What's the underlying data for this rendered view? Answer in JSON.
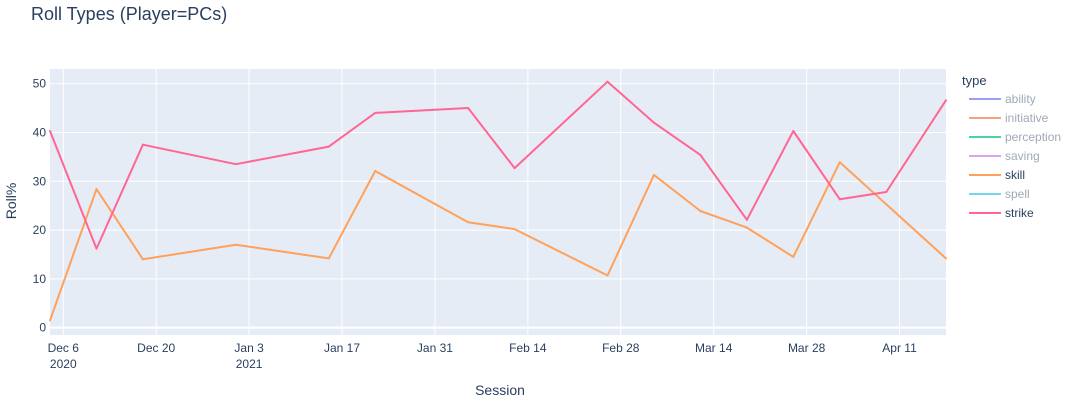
{
  "chart_data": {
    "type": "line",
    "title": "Roll Types (Player=PCs)",
    "xlabel": "Session",
    "ylabel": "Roll%",
    "x_type": "date",
    "xlim": [
      "2020-12-04",
      "2021-04-18"
    ],
    "ylim": [
      -1.5,
      53
    ],
    "grid": true,
    "legend_title": "type",
    "legend_placement": "right",
    "x_ticks": [
      {
        "date": "2020-12-06",
        "label": "Dec 6",
        "sublabel": "2020"
      },
      {
        "date": "2020-12-20",
        "label": "Dec 20",
        "sublabel": ""
      },
      {
        "date": "2021-01-03",
        "label": "Jan 3",
        "sublabel": "2021"
      },
      {
        "date": "2021-01-17",
        "label": "Jan 17",
        "sublabel": ""
      },
      {
        "date": "2021-01-31",
        "label": "Jan 31",
        "sublabel": ""
      },
      {
        "date": "2021-02-14",
        "label": "Feb 14",
        "sublabel": ""
      },
      {
        "date": "2021-02-28",
        "label": "Feb 28",
        "sublabel": ""
      },
      {
        "date": "2021-03-14",
        "label": "Mar 14",
        "sublabel": ""
      },
      {
        "date": "2021-03-28",
        "label": "Mar 28",
        "sublabel": ""
      },
      {
        "date": "2021-04-11",
        "label": "Apr 11",
        "sublabel": ""
      }
    ],
    "y_ticks": [
      0,
      10,
      20,
      30,
      40,
      50
    ],
    "series": [
      {
        "name": "ability",
        "color": "#9d9df2",
        "visible": false,
        "points": []
      },
      {
        "name": "initiative",
        "color": "#f7a17c",
        "visible": false,
        "points": []
      },
      {
        "name": "perception",
        "color": "#4fd1a0",
        "visible": false,
        "points": []
      },
      {
        "name": "saving",
        "color": "#d7a6ef",
        "visible": false,
        "points": []
      },
      {
        "name": "skill",
        "color": "#FFA15A",
        "visible": true,
        "points": [
          {
            "x": "2020-12-04",
            "y": 1.5
          },
          {
            "x": "2020-12-11",
            "y": 28.4
          },
          {
            "x": "2020-12-18",
            "y": 14.0
          },
          {
            "x": "2021-01-01",
            "y": 17.0
          },
          {
            "x": "2021-01-15",
            "y": 14.2
          },
          {
            "x": "2021-01-22",
            "y": 32.1
          },
          {
            "x": "2021-02-05",
            "y": 21.6
          },
          {
            "x": "2021-02-12",
            "y": 20.2
          },
          {
            "x": "2021-02-26",
            "y": 10.7
          },
          {
            "x": "2021-03-05",
            "y": 31.3
          },
          {
            "x": "2021-03-12",
            "y": 23.9
          },
          {
            "x": "2021-03-19",
            "y": 20.5
          },
          {
            "x": "2021-03-26",
            "y": 14.5
          },
          {
            "x": "2021-04-02",
            "y": 33.9
          },
          {
            "x": "2021-04-18",
            "y": 14.2
          }
        ]
      },
      {
        "name": "spell",
        "color": "#6fd8ee",
        "visible": false,
        "points": []
      },
      {
        "name": "strike",
        "color": "#FF6692",
        "visible": true,
        "points": [
          {
            "x": "2020-12-04",
            "y": 40.3
          },
          {
            "x": "2020-12-11",
            "y": 16.2
          },
          {
            "x": "2020-12-18",
            "y": 37.5
          },
          {
            "x": "2021-01-01",
            "y": 33.5
          },
          {
            "x": "2021-01-15",
            "y": 37.1
          },
          {
            "x": "2021-01-22",
            "y": 44.0
          },
          {
            "x": "2021-02-05",
            "y": 45.0
          },
          {
            "x": "2021-02-12",
            "y": 32.7
          },
          {
            "x": "2021-02-26",
            "y": 50.4
          },
          {
            "x": "2021-03-05",
            "y": 42.0
          },
          {
            "x": "2021-03-12",
            "y": 35.4
          },
          {
            "x": "2021-03-19",
            "y": 22.1
          },
          {
            "x": "2021-03-26",
            "y": 40.3
          },
          {
            "x": "2021-04-02",
            "y": 26.3
          },
          {
            "x": "2021-04-09",
            "y": 27.8
          },
          {
            "x": "2021-04-18",
            "y": 46.6
          }
        ]
      }
    ]
  }
}
